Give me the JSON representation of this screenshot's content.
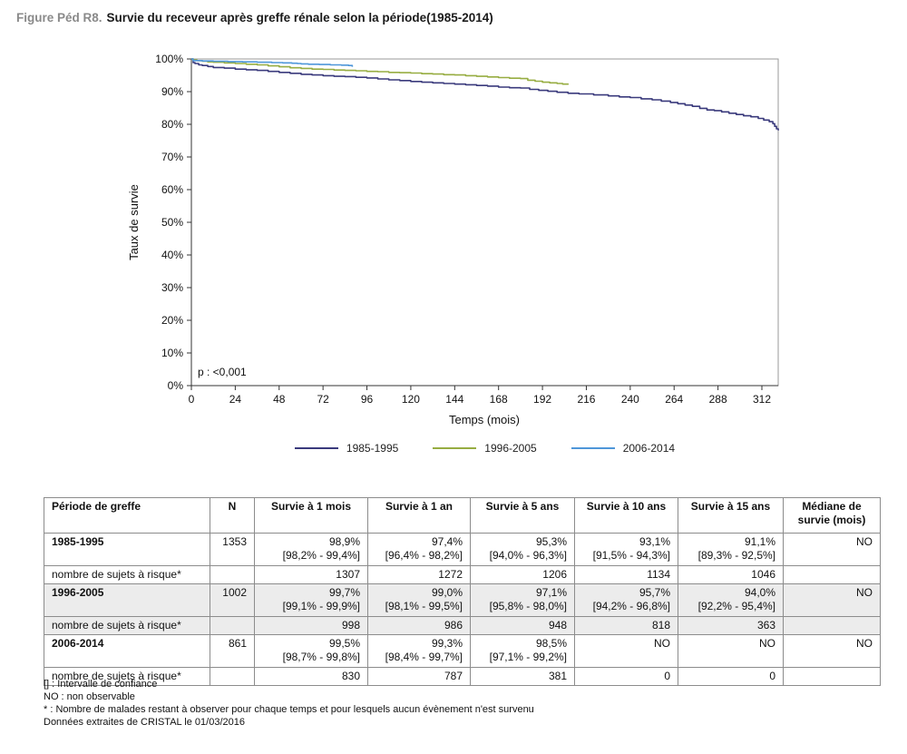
{
  "header": {
    "figure_label": "Figure Péd R8.",
    "figure_title": "Survie du receveur après greffe rénale selon la période(1985-2014)"
  },
  "chart_data": {
    "type": "line",
    "subtype": "kaplan-meier-step",
    "title": "Survie du receveur après greffe rénale selon la période(1985-2014)",
    "xlabel": "Temps (mois)",
    "ylabel": "Taux de survie",
    "xlim": [
      0,
      321
    ],
    "ylim": [
      0,
      100
    ],
    "grid": false,
    "legend_position": "bottom",
    "annotation": "p : <0,001",
    "x_ticks": [
      0,
      24,
      48,
      72,
      96,
      120,
      144,
      168,
      192,
      216,
      240,
      264,
      288,
      312
    ],
    "y_tick_labels": [
      "0%",
      "10%",
      "20%",
      "30%",
      "40%",
      "50%",
      "60%",
      "70%",
      "80%",
      "90%",
      "100%"
    ],
    "series": [
      {
        "name": "1985-1995",
        "color": "#3a3a7c",
        "points": [
          [
            0,
            100
          ],
          [
            1,
            98.9
          ],
          [
            2,
            98.6
          ],
          [
            4,
            98.2
          ],
          [
            6,
            98.0
          ],
          [
            9,
            97.7
          ],
          [
            12,
            97.4
          ],
          [
            18,
            97.2
          ],
          [
            24,
            96.9
          ],
          [
            30,
            96.7
          ],
          [
            36,
            96.5
          ],
          [
            42,
            96.2
          ],
          [
            48,
            95.9
          ],
          [
            54,
            95.6
          ],
          [
            60,
            95.3
          ],
          [
            66,
            95.1
          ],
          [
            72,
            94.9
          ],
          [
            78,
            94.7
          ],
          [
            84,
            94.6
          ],
          [
            90,
            94.4
          ],
          [
            96,
            94.2
          ],
          [
            102,
            93.9
          ],
          [
            108,
            93.6
          ],
          [
            114,
            93.4
          ],
          [
            120,
            93.1
          ],
          [
            126,
            92.9
          ],
          [
            132,
            92.7
          ],
          [
            138,
            92.5
          ],
          [
            144,
            92.3
          ],
          [
            150,
            92.1
          ],
          [
            156,
            91.9
          ],
          [
            162,
            91.7
          ],
          [
            168,
            91.4
          ],
          [
            174,
            91.2
          ],
          [
            180,
            91.1
          ],
          [
            185,
            90.7
          ],
          [
            190,
            90.4
          ],
          [
            195,
            90.1
          ],
          [
            200,
            89.8
          ],
          [
            206,
            89.5
          ],
          [
            212,
            89.3
          ],
          [
            220,
            89.0
          ],
          [
            228,
            88.7
          ],
          [
            234,
            88.4
          ],
          [
            240,
            88.2
          ],
          [
            246,
            87.8
          ],
          [
            252,
            87.5
          ],
          [
            257,
            87.1
          ],
          [
            262,
            86.7
          ],
          [
            266,
            86.3
          ],
          [
            270,
            85.9
          ],
          [
            274,
            85.5
          ],
          [
            278,
            84.9
          ],
          [
            282,
            84.4
          ],
          [
            286,
            84.2
          ],
          [
            290,
            83.8
          ],
          [
            294,
            83.4
          ],
          [
            298,
            83.0
          ],
          [
            302,
            82.6
          ],
          [
            306,
            82.3
          ],
          [
            310,
            81.8
          ],
          [
            313,
            81.3
          ],
          [
            316,
            80.8
          ],
          [
            318,
            80.2
          ],
          [
            319,
            79.4
          ],
          [
            320,
            78.6
          ],
          [
            321,
            78.1
          ]
        ]
      },
      {
        "name": "1996-2005",
        "color": "#97ad42",
        "points": [
          [
            0,
            100
          ],
          [
            1,
            99.7
          ],
          [
            3,
            99.5
          ],
          [
            6,
            99.3
          ],
          [
            9,
            99.1
          ],
          [
            12,
            99.0
          ],
          [
            18,
            98.8
          ],
          [
            24,
            98.6
          ],
          [
            30,
            98.4
          ],
          [
            36,
            98.2
          ],
          [
            42,
            97.9
          ],
          [
            48,
            97.6
          ],
          [
            54,
            97.3
          ],
          [
            60,
            97.1
          ],
          [
            66,
            96.9
          ],
          [
            72,
            96.8
          ],
          [
            78,
            96.6
          ],
          [
            84,
            96.5
          ],
          [
            90,
            96.4
          ],
          [
            96,
            96.2
          ],
          [
            102,
            96.1
          ],
          [
            108,
            95.9
          ],
          [
            114,
            95.8
          ],
          [
            120,
            95.7
          ],
          [
            126,
            95.5
          ],
          [
            132,
            95.4
          ],
          [
            138,
            95.2
          ],
          [
            144,
            95.1
          ],
          [
            150,
            94.9
          ],
          [
            156,
            94.7
          ],
          [
            162,
            94.5
          ],
          [
            168,
            94.3
          ],
          [
            174,
            94.1
          ],
          [
            180,
            94.0
          ],
          [
            184,
            93.5
          ],
          [
            188,
            93.2
          ],
          [
            192,
            92.9
          ],
          [
            196,
            92.7
          ],
          [
            200,
            92.5
          ],
          [
            203,
            92.3
          ],
          [
            206,
            92.1
          ]
        ]
      },
      {
        "name": "2006-2014",
        "color": "#4f97d9",
        "points": [
          [
            0,
            100
          ],
          [
            1,
            99.5
          ],
          [
            6,
            99.4
          ],
          [
            12,
            99.3
          ],
          [
            20,
            99.2
          ],
          [
            28,
            99.1
          ],
          [
            36,
            99.0
          ],
          [
            44,
            98.9
          ],
          [
            50,
            98.8
          ],
          [
            55,
            98.7
          ],
          [
            58,
            98.6
          ],
          [
            60,
            98.5
          ],
          [
            64,
            98.4
          ],
          [
            70,
            98.3
          ],
          [
            76,
            98.2
          ],
          [
            82,
            98.1
          ],
          [
            86,
            98.0
          ],
          [
            88,
            97.6
          ]
        ]
      }
    ]
  },
  "table": {
    "headers": [
      "Période de greffe",
      "N",
      "Survie à 1 mois",
      "Survie à 1 an",
      "Survie à 5 ans",
      "Survie à 10 ans",
      "Survie à 15 ans",
      "Médiane de\nsurvie (mois)"
    ],
    "rows": [
      {
        "type": "period",
        "shaded": false,
        "cells": [
          "1985-1995",
          "1353",
          "98,9%\n[98,2% - 99,4%]",
          "97,4%\n[96,4% - 98,2%]",
          "95,3%\n[94,0% - 96,3%]",
          "93,1%\n[91,5% - 94,3%]",
          "91,1%\n[89,3% - 92,5%]",
          "NO"
        ]
      },
      {
        "type": "risk",
        "shaded": false,
        "cells": [
          "nombre de sujets à risque*",
          "",
          "1307",
          "1272",
          "1206",
          "1134",
          "1046",
          ""
        ]
      },
      {
        "type": "period",
        "shaded": true,
        "cells": [
          "1996-2005",
          "1002",
          "99,7%\n[99,1% - 99,9%]",
          "99,0%\n[98,1% - 99,5%]",
          "97,1%\n[95,8% - 98,0%]",
          "95,7%\n[94,2% - 96,8%]",
          "94,0%\n[92,2% - 95,4%]",
          "NO"
        ]
      },
      {
        "type": "risk",
        "shaded": true,
        "cells": [
          "nombre de sujets à risque*",
          "",
          "998",
          "986",
          "948",
          "818",
          "363",
          ""
        ]
      },
      {
        "type": "period",
        "shaded": false,
        "cells": [
          "2006-2014",
          "861",
          "99,5%\n[98,7% - 99,8%]",
          "99,3%\n[98,4% - 99,7%]",
          "98,5%\n[97,1% - 99,2%]",
          "NO",
          "NO",
          "NO"
        ]
      },
      {
        "type": "risk",
        "shaded": false,
        "cells": [
          "nombre de sujets à risque*",
          "",
          "830",
          "787",
          "381",
          "0",
          "0",
          ""
        ]
      }
    ]
  },
  "footnotes": [
    "[] : Intervalle de confiance",
    "NO : non observable",
    "* : Nombre de malades restant à observer pour chaque temps et pour lesquels aucun évènement n'est survenu",
    "Données extraites de CRISTAL le 01/03/2016"
  ]
}
